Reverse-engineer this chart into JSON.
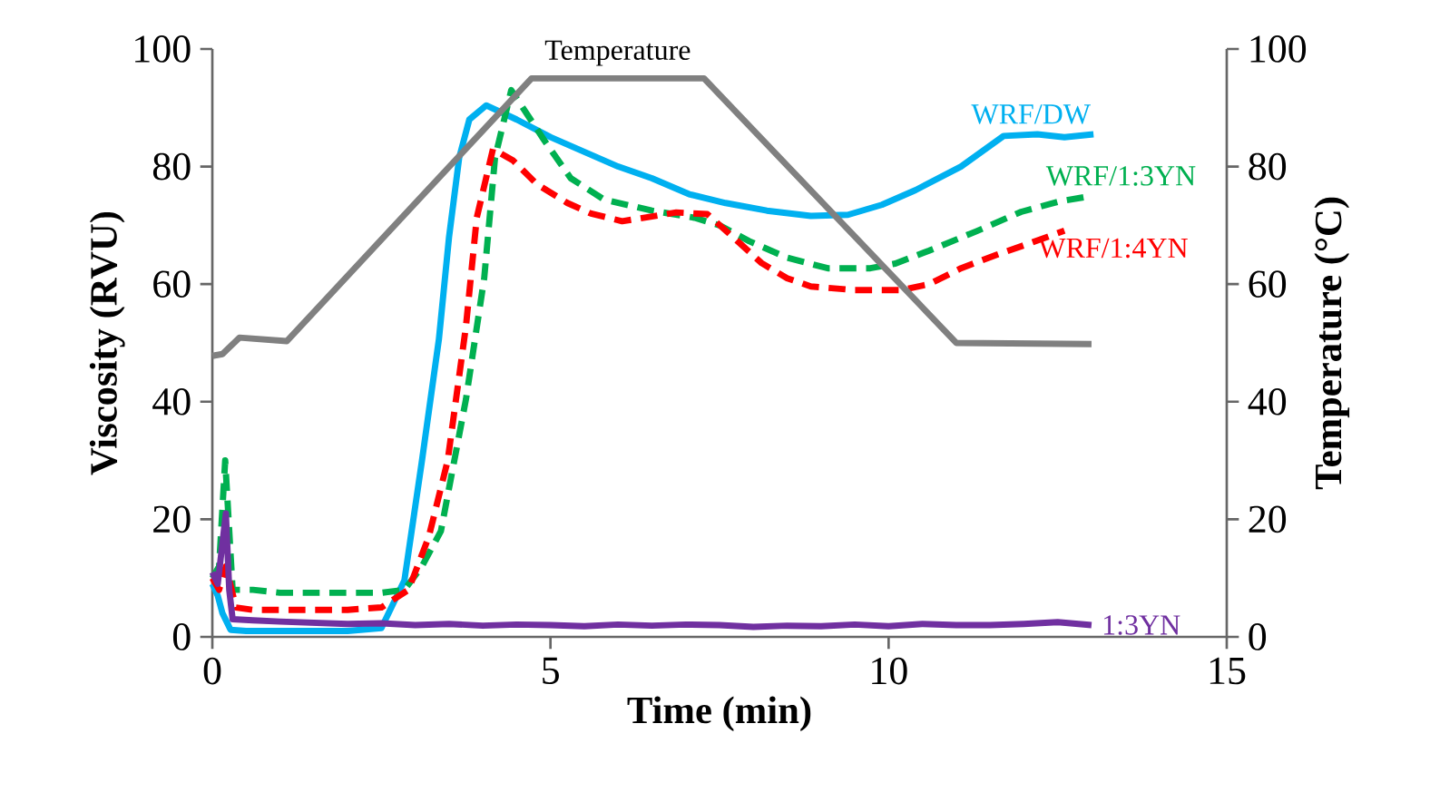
{
  "chart_data": {
    "type": "line",
    "xlabel": "Time (min)",
    "ylabel": "Viscosity (RVU)",
    "y2label": "Temperature (°C)",
    "xlim": [
      0,
      15
    ],
    "xticks": [
      0,
      5,
      10,
      15
    ],
    "ylim": [
      0,
      100
    ],
    "yticks": [
      0,
      20,
      40,
      60,
      80,
      100
    ],
    "y2lim": [
      0,
      100
    ],
    "y2ticks": [
      0,
      20,
      40,
      60,
      80,
      100
    ],
    "grid": false,
    "marker": "none",
    "series": [
      {
        "name": "WRF/DW",
        "color": "#00b0f0",
        "line_style": "solid",
        "x": [
          0,
          0.08,
          0.15,
          0.27,
          0.5,
          1,
          1.5,
          2,
          2.5,
          2.84,
          3.1,
          3.35,
          3.5,
          3.65,
          3.8,
          4.05,
          4.5,
          5,
          5.5,
          6,
          6.5,
          7.05,
          7.59,
          8.2,
          8.85,
          9.4,
          9.9,
          10.4,
          11.07,
          11.7,
          12.2,
          12.6,
          13.03
        ],
        "values": [
          9,
          7,
          4,
          1.2,
          1,
          1,
          1,
          1,
          1.5,
          9.6,
          30,
          50.6,
          68,
          81.5,
          88,
          90.4,
          88,
          85,
          82.5,
          80,
          78,
          75.3,
          73.8,
          72.5,
          71.6,
          71.8,
          73.5,
          76,
          80,
          85.2,
          85.5,
          85,
          85.5
        ]
      },
      {
        "name": "WRF/1:3YN",
        "color": "#00b050",
        "line_style": "dashed",
        "x": [
          0,
          0.1,
          0.19,
          0.3,
          0.6,
          1,
          1.5,
          2,
          2.5,
          2.84,
          3.1,
          3.38,
          3.75,
          4.02,
          4.18,
          4.42,
          4.9,
          5.3,
          5.79,
          6.5,
          7.13,
          7.5,
          7.94,
          8.5,
          9.1,
          9.73,
          10.1,
          10.6,
          11.3,
          11.96,
          12.5,
          13.0
        ],
        "values": [
          10,
          12,
          30,
          8,
          8,
          7.5,
          7.5,
          7.5,
          7.5,
          8,
          12,
          18,
          40.4,
          61,
          81.5,
          93,
          84.6,
          78,
          74.4,
          72.5,
          71.3,
          70,
          67.3,
          64.5,
          62.7,
          62.7,
          63.5,
          65.7,
          69,
          72.3,
          74,
          75
        ]
      },
      {
        "name": "WRF/1:4YN",
        "color": "#ff0000",
        "line_style": "dashed",
        "x": [
          0,
          0.1,
          0.2,
          0.35,
          0.6,
          1,
          1.5,
          2,
          2.5,
          2.9,
          3.2,
          3.48,
          3.75,
          3.91,
          4.15,
          4.45,
          4.8,
          5.25,
          5.6,
          6.06,
          6.5,
          6.86,
          7.32,
          7.7,
          8.12,
          8.5,
          8.85,
          9.5,
          10.19,
          10.6,
          11.07,
          11.6,
          12.1,
          12.6
        ],
        "values": [
          10,
          8,
          12,
          5,
          4.6,
          4.6,
          4.6,
          4.6,
          5,
          8,
          17,
          30,
          52.8,
          71.3,
          83,
          81,
          77,
          73.8,
          72,
          70.7,
          71.5,
          72.2,
          71.9,
          68,
          63.6,
          61,
          59.6,
          59,
          59,
          60,
          62.7,
          65,
          67,
          69.1
        ]
      },
      {
        "name": "1:3YN",
        "color": "#7030a0",
        "line_style": "solid",
        "x": [
          0,
          0.08,
          0.15,
          0.2,
          0.25,
          0.3,
          0.6,
          1,
          1.5,
          2,
          2.5,
          3,
          3.5,
          4,
          4.5,
          5,
          5.5,
          6,
          6.5,
          7,
          7.5,
          8,
          8.5,
          9,
          9.5,
          10,
          10.5,
          11,
          11.5,
          12,
          12.5,
          13
        ],
        "values": [
          11,
          9,
          16,
          21,
          8,
          3,
          2.8,
          2.6,
          2.4,
          2.2,
          2.3,
          2,
          2.2,
          1.9,
          2.1,
          2,
          1.8,
          2.1,
          1.9,
          2.1,
          2,
          1.7,
          1.9,
          1.8,
          2.1,
          1.8,
          2.2,
          2,
          2,
          2.2,
          2.5,
          2
        ]
      },
      {
        "name": "Temperature",
        "color": "#808080",
        "line_style": "solid",
        "axis": "y2",
        "x": [
          0,
          0.15,
          0.4,
          1.1,
          4.72,
          7.27,
          11.0,
          13.0
        ],
        "values": [
          47.8,
          48.1,
          50.9,
          50.3,
          95,
          95,
          50,
          49.8
        ]
      }
    ]
  }
}
